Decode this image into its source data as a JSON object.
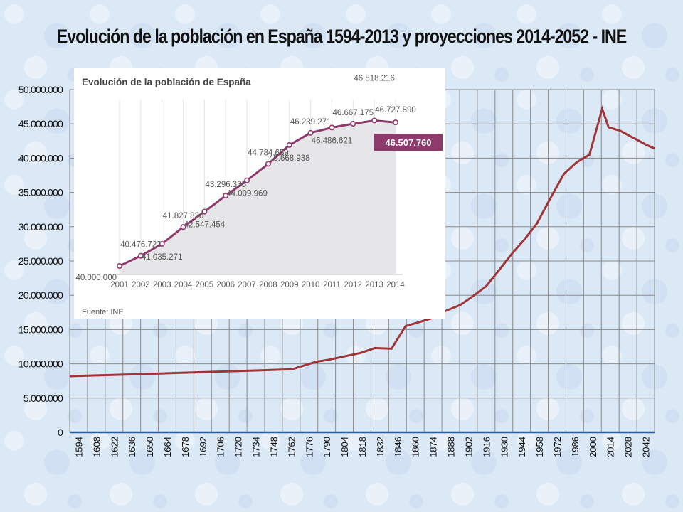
{
  "title": "Evolución de la población en España 1594-2013 y proyecciones 2014-2052 - INE",
  "colors": {
    "line": "#a03538",
    "grid": "#8a8a8a",
    "baseline": "#2e5f9e",
    "inset_line": "#8e3a6c",
    "inset_badge": "#8e3a6c"
  },
  "chart_data": [
    {
      "type": "line",
      "title": "Evolución de la población en España 1594-2013 y proyecciones 2014-2052 - INE",
      "ylim": [
        0,
        50000000
      ],
      "yticks": [
        "0",
        "5.000.000",
        "10.000.000",
        "15.000.000",
        "20.000.000",
        "25.000.000",
        "30.000.000",
        "35.000.000",
        "40.000.000",
        "45.000.000",
        "50.000.000"
      ],
      "xlim": [
        1594,
        2052
      ],
      "xticks": [
        "1594",
        "1608",
        "1622",
        "1636",
        "1650",
        "1664",
        "1678",
        "1692",
        "1706",
        "1720",
        "1734",
        "1748",
        "1762",
        "1776",
        "1790",
        "1804",
        "1818",
        "1832",
        "1846",
        "1860",
        "1874",
        "1888",
        "1902",
        "1916",
        "1930",
        "1944",
        "1958",
        "1972",
        "1986",
        "2000",
        "2014",
        "2028",
        "2042"
      ],
      "series": [
        {
          "x": [
            1594,
            1650,
            1700,
            1768,
            1787,
            1797,
            1822,
            1833,
            1846,
            1857,
            1877,
            1887,
            1900,
            1910,
            1920,
            1930,
            1940,
            1950,
            1960,
            1970,
            1981,
            1991,
            2001,
            2011,
            2016,
            2025,
            2035,
            2045,
            2052
          ],
          "y": [
            8200000,
            8500000,
            8800000,
            9200000,
            10300000,
            10600000,
            11600000,
            12300000,
            12200000,
            15500000,
            16600000,
            17600000,
            18600000,
            19900000,
            21300000,
            23600000,
            26000000,
            28100000,
            30500000,
            34000000,
            37700000,
            39400000,
            40500000,
            47200000,
            44500000,
            44000000,
            43000000,
            42000000,
            41400000
          ]
        }
      ]
    },
    {
      "type": "area",
      "title": "Evolución de la población de España",
      "source": "Fuente: INE.",
      "categories": [
        "2001",
        "2002",
        "2003",
        "2004",
        "2005",
        "2006",
        "2007",
        "2008",
        "2009",
        "2010",
        "2011",
        "2012",
        "2013",
        "2014"
      ],
      "values": [
        40000000,
        40476723,
        41035271,
        41827836,
        42547454,
        43296335,
        44009969,
        44784659,
        45668938,
        46239271,
        46486621,
        46667175,
        46818216,
        46727890
      ],
      "value_labels": [
        "40.000.000",
        "40.476.723",
        "41.035.271",
        "41.827.836",
        "42.547.454",
        "43.296.335",
        "44.009.969",
        "44.784.659",
        "45.668.938",
        "46.239.271",
        "46.486.621",
        "46.667.175",
        "46.818.216",
        "46.727.890"
      ],
      "highlight_label": "46.507.760",
      "ylim": [
        39600000,
        47800000
      ]
    }
  ]
}
